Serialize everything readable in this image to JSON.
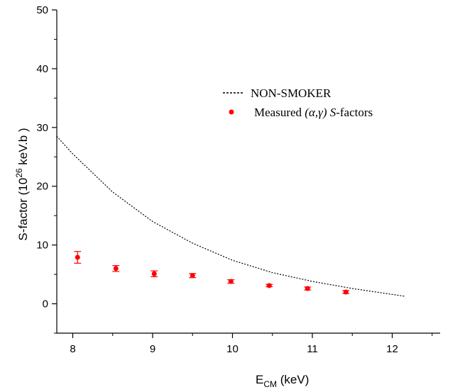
{
  "chart_data": {
    "type": "scatter",
    "xlabel": {
      "main": "E",
      "sub": "CM",
      "unit": " (keV)"
    },
    "ylabel": {
      "main": "S-factor (10",
      "sup": "26",
      "unit": " keV.b )"
    },
    "xlim": [
      7.8,
      12.6
    ],
    "ylim": [
      -5,
      50
    ],
    "xticks": [
      8,
      9,
      10,
      11,
      12
    ],
    "yticks": [
      0,
      10,
      20,
      30,
      40,
      50
    ],
    "grid": false,
    "legend_position": "top-right",
    "series": [
      {
        "name": "NON-SMOKER",
        "style": "dotted-line",
        "color": "#000000",
        "x": [
          7.8,
          8.0,
          8.5,
          9.0,
          9.5,
          10.0,
          10.5,
          11.0,
          11.5,
          12.0,
          12.15
        ],
        "y": [
          28.5,
          25.5,
          19.0,
          14.0,
          10.3,
          7.4,
          5.3,
          3.8,
          2.6,
          1.6,
          1.3
        ]
      },
      {
        "name": "Measured (α,γ) S-factors",
        "name_parts": {
          "pre": "Measured ",
          "italic1": "(α,γ) S",
          "post": "-factors"
        },
        "style": "points-with-error-bars",
        "color": "#ff0000",
        "x": [
          8.06,
          8.54,
          9.02,
          9.5,
          9.98,
          10.46,
          10.94,
          11.42
        ],
        "y": [
          7.9,
          6.0,
          5.1,
          4.8,
          3.8,
          3.1,
          2.6,
          2.0
        ],
        "err": [
          1.0,
          0.5,
          0.5,
          0.35,
          0.3,
          0.2,
          0.25,
          0.25
        ]
      }
    ]
  }
}
